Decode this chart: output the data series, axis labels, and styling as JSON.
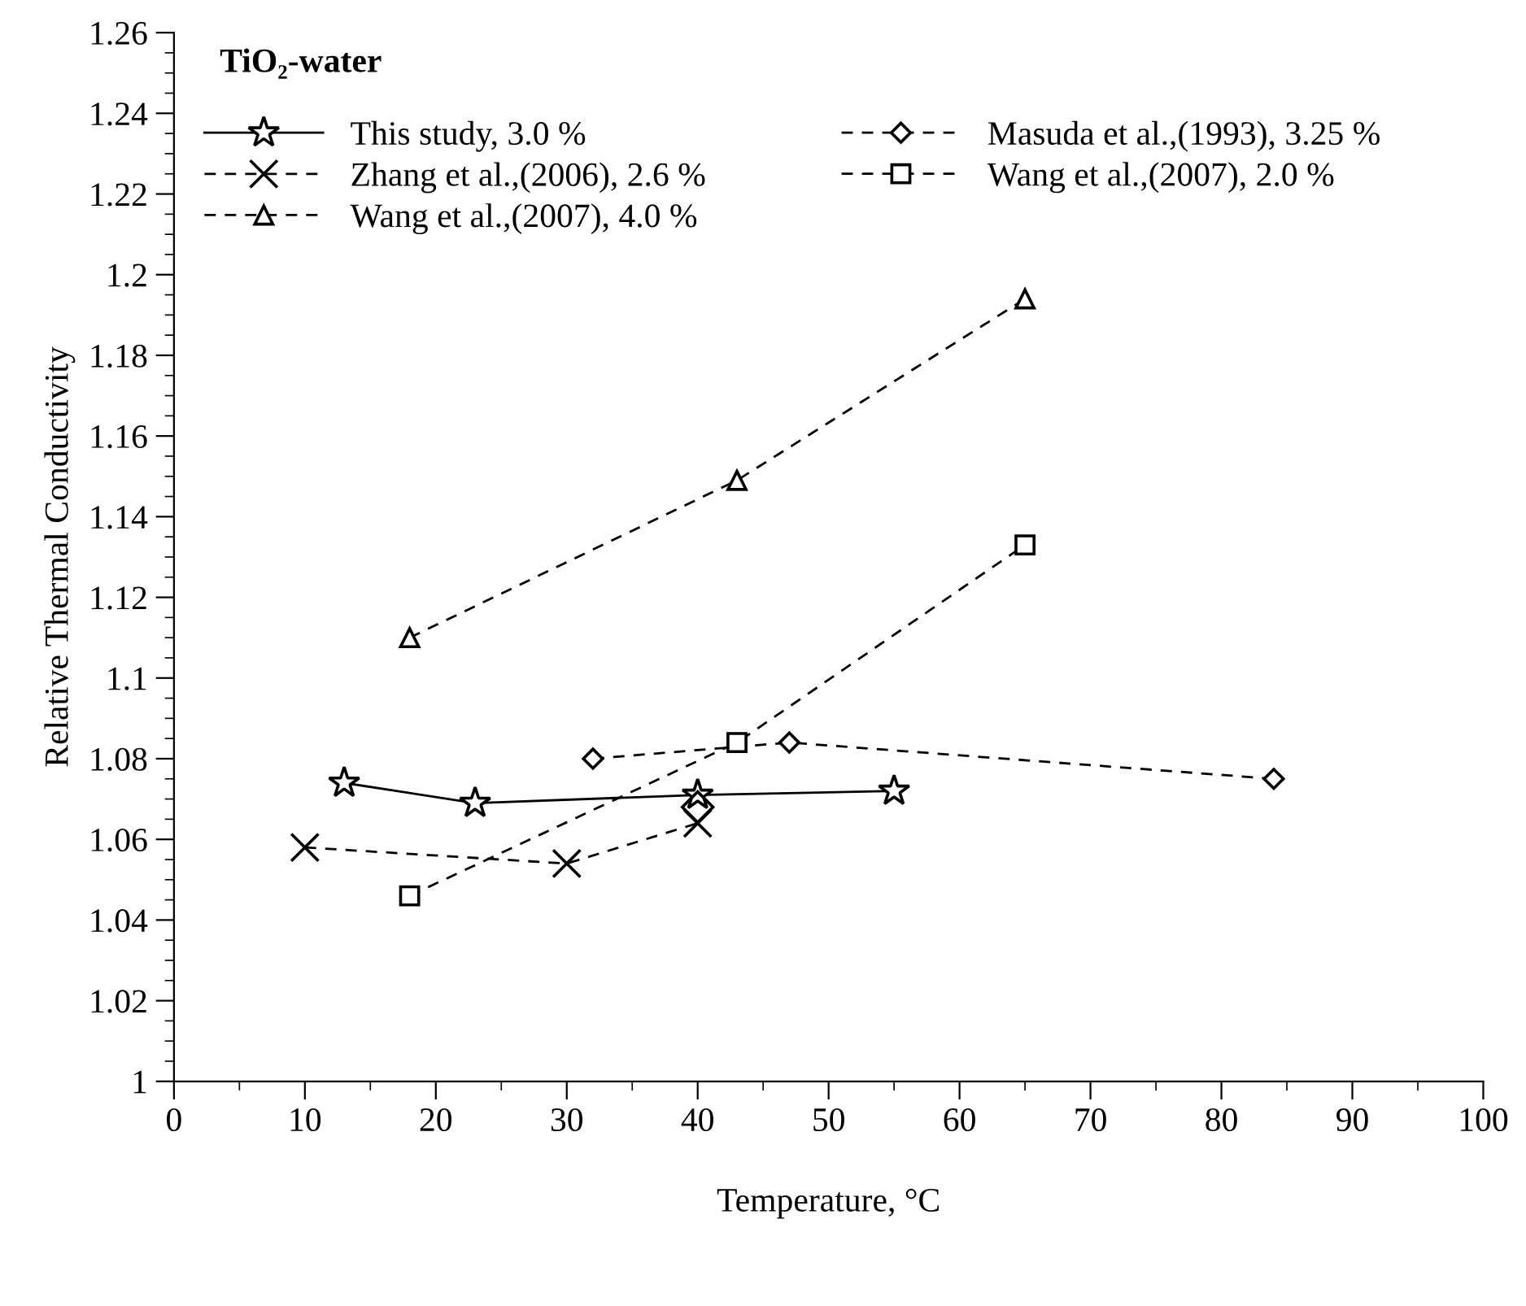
{
  "chart_data": {
    "type": "line",
    "xlabel": "Temperature, °C",
    "ylabel": "Relative Thermal Conductivity",
    "annotations": [
      "TiO₂-water"
    ],
    "xlim": [
      0,
      100
    ],
    "xticks": [
      0,
      10,
      20,
      30,
      40,
      50,
      60,
      70,
      80,
      90,
      100
    ],
    "ylim": [
      1,
      1.26
    ],
    "yticks": [
      1,
      1.02,
      1.04,
      1.06,
      1.08,
      1.1,
      1.12,
      1.14,
      1.16,
      1.18,
      1.2,
      1.22,
      1.24,
      1.26
    ],
    "grid": false,
    "legend": "top left",
    "series": [
      {
        "name": "This study, 3.0 %",
        "color": "#000000",
        "marker": "star",
        "line_style": "solid",
        "x": [
          13,
          23,
          40,
          55
        ],
        "values": [
          1.074,
          1.069,
          1.071,
          1.072
        ]
      },
      {
        "name": "Masuda et al.,(1993), 3.25 %",
        "color": "#000000",
        "marker": "diamond",
        "line_style": "dashed",
        "x": [
          32,
          47,
          84
        ],
        "values": [
          1.08,
          1.084,
          1.075
        ]
      },
      {
        "name": "Zhang et al.,(2006), 2.6 %",
        "color": "#000000",
        "marker": "cross",
        "line_style": "dashed",
        "x": [
          10,
          30,
          40
        ],
        "values": [
          1.058,
          1.054,
          1.064
        ]
      },
      {
        "name": "Wang et al.,(2007), 2.0 %",
        "color": "#000000",
        "marker": "square",
        "line_style": "dashed",
        "x": [
          18,
          43,
          65
        ],
        "values": [
          1.046,
          1.084,
          1.133
        ]
      },
      {
        "name": "Wang et al.,(2007), 4.0 %",
        "color": "#000000",
        "marker": "triangle",
        "line_style": "dashed",
        "x": [
          18,
          43,
          65
        ],
        "values": [
          1.11,
          1.149,
          1.194
        ]
      },
      {
        "type": "scatter",
        "color": "#000000",
        "marker": "diamond",
        "x": [
          40
        ],
        "values": [
          1.068
        ]
      }
    ]
  }
}
